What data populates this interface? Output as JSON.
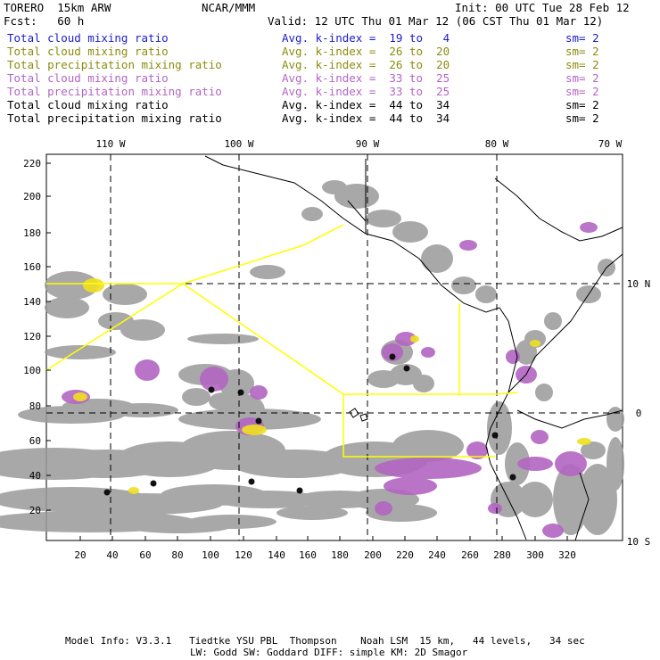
{
  "header": {
    "model": "TORERO  15km ARW",
    "org": "NCAR/MMM",
    "init": "Init: 00 UTC Tue 28 Feb 12",
    "fcst": "Fcst:   60 h",
    "valid": "Valid: 12 UTC Thu 01 Mar 12 (06 CST Thu 01 Mar 12)"
  },
  "legend": [
    {
      "field": "Total cloud mixing ratio",
      "kindex": "Avg. k-index =  19 to   4",
      "sm": "sm= 2",
      "color": "#1c1cc8"
    },
    {
      "field": "Total cloud mixing ratio",
      "kindex": "Avg. k-index =  26 to  20",
      "sm": "sm= 2",
      "color": "#8c8c10"
    },
    {
      "field": "Total precipitation mixing ratio",
      "kindex": "Avg. k-index =  26 to  20",
      "sm": "sm= 2",
      "color": "#8c8c10"
    },
    {
      "field": "Total cloud mixing ratio",
      "kindex": "Avg. k-index =  33 to  25",
      "sm": "sm= 2",
      "color": "#b266c2"
    },
    {
      "field": "Total precipitation mixing ratio",
      "kindex": "Avg. k-index =  33 to  25",
      "sm": "sm= 2",
      "color": "#b266c2"
    },
    {
      "field": "Total cloud mixing ratio",
      "kindex": "Avg. k-index =  44 to  34",
      "sm": "sm= 2",
      "color": "#000000"
    },
    {
      "field": "Total precipitation mixing ratio",
      "kindex": "Avg. k-index =  44 to  34",
      "sm": "sm= 2",
      "color": "#000000"
    }
  ],
  "map": {
    "lon_labels": [
      "110 W",
      "100 W",
      "90 W",
      "80 W",
      "70 W"
    ],
    "lat_labels": [
      "10 N",
      "0",
      "10 S"
    ],
    "x_ticks": [
      "20",
      "40",
      "60",
      "80",
      "100",
      "120",
      "140",
      "160",
      "180",
      "200",
      "220",
      "240",
      "260",
      "280",
      "300",
      "320"
    ],
    "y_ticks": [
      "220",
      "200",
      "180",
      "160",
      "140",
      "120",
      "100",
      "80",
      "60",
      "40",
      "20"
    ],
    "colors": {
      "cloud_gray": "#9a9a9a",
      "purple": "#b266c2",
      "yellow": "#f0e020",
      "box": "#ffff00"
    }
  },
  "footer": {
    "line1": "Model Info: V3.3.1   Tiedtke YSU PBL  Thompson    Noah LSM  15 km,   44 levels,   34 sec",
    "line2": "LW: Godd SW: Goddard DIFF: simple KM: 2D Smagor"
  }
}
